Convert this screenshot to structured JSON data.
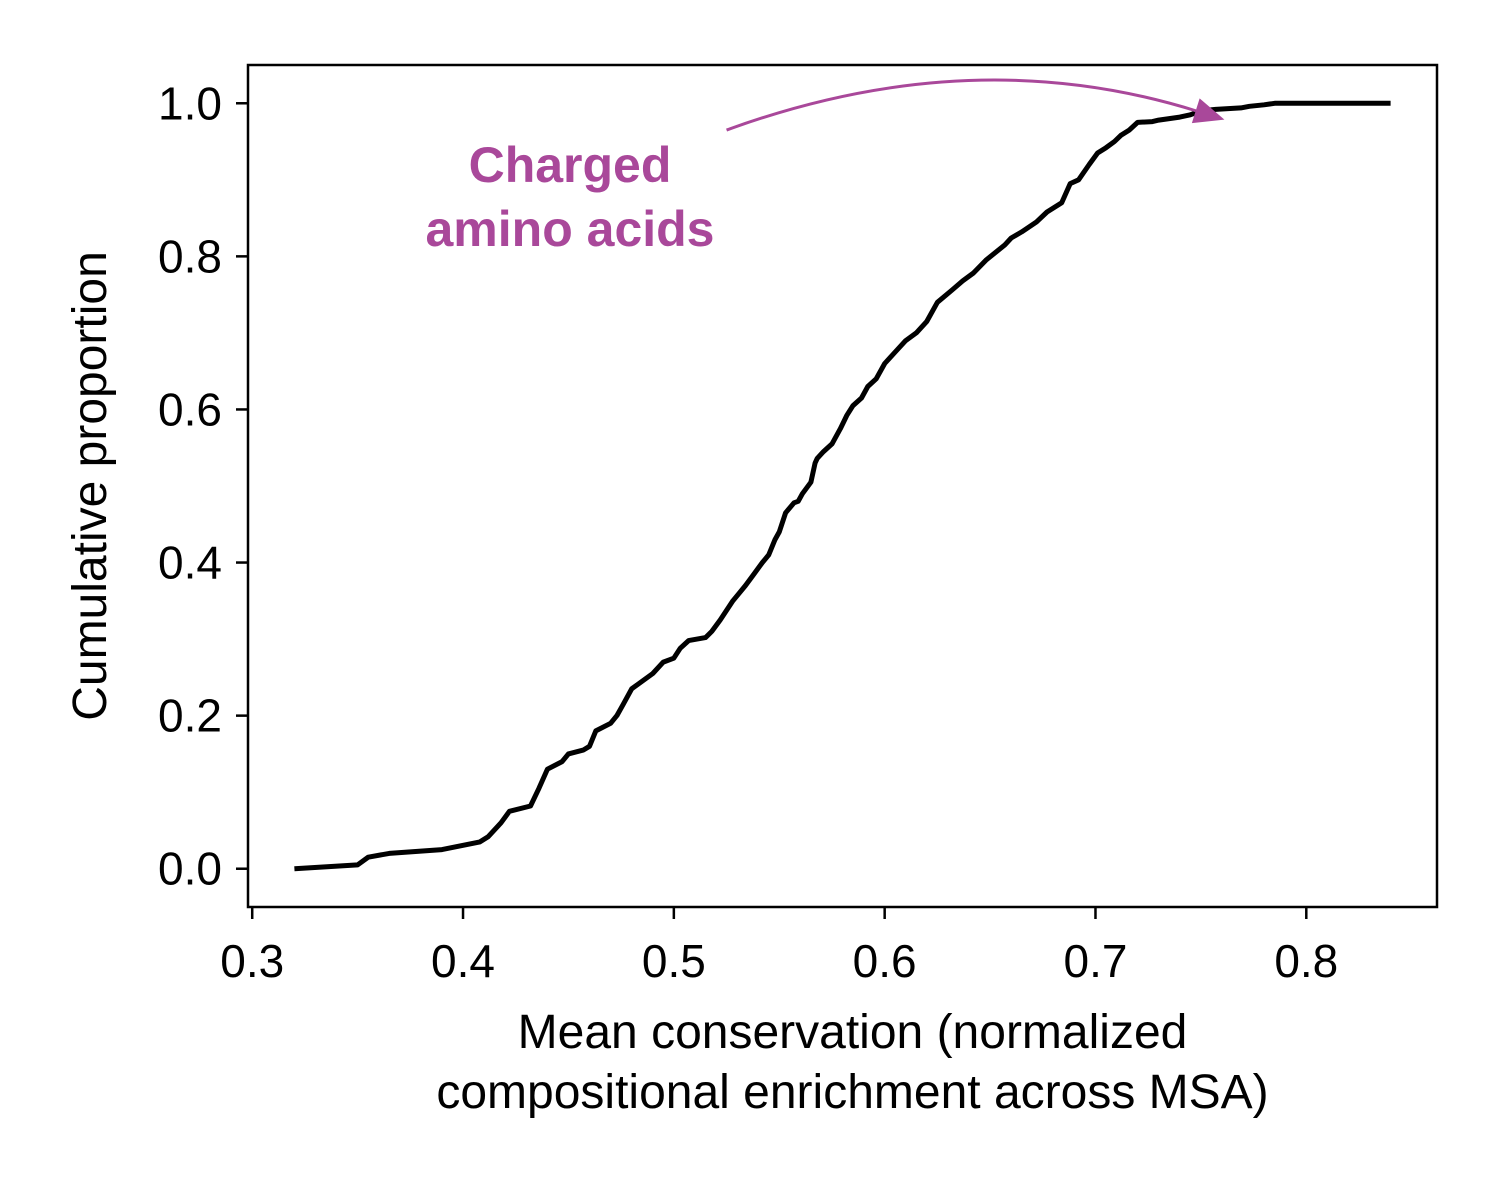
{
  "chart_data": {
    "type": "line",
    "xlabel": "Mean conservation (normalized\ncompositional enrichment across MSA)",
    "ylabel": "Cumulative proportion",
    "xlim": [
      0.298,
      0.862
    ],
    "ylim": [
      -0.05,
      1.05
    ],
    "xticks": [
      0.3,
      0.4,
      0.5,
      0.6,
      0.7,
      0.8
    ],
    "xtick_labels": [
      "0.3",
      "0.4",
      "0.5",
      "0.6",
      "0.7",
      "0.8"
    ],
    "yticks": [
      0.0,
      0.2,
      0.4,
      0.6,
      0.8,
      1.0
    ],
    "ytick_labels": [
      "0.0",
      "0.2",
      "0.4",
      "0.6",
      "0.8",
      "1.0"
    ],
    "grid": false,
    "line_color": "#000000",
    "series": [
      {
        "x": [
          0.32,
          0.35,
          0.355,
          0.365,
          0.39,
          0.408,
          0.412,
          0.418,
          0.422,
          0.432,
          0.436,
          0.44,
          0.447,
          0.45,
          0.457,
          0.46,
          0.463,
          0.47,
          0.473,
          0.476,
          0.48,
          0.49,
          0.495,
          0.5,
          0.503,
          0.507,
          0.515,
          0.518,
          0.522,
          0.528,
          0.531,
          0.534,
          0.538,
          0.542,
          0.545,
          0.548,
          0.55,
          0.553,
          0.557,
          0.559,
          0.561,
          0.565,
          0.567,
          0.568,
          0.571,
          0.575,
          0.579,
          0.582,
          0.585,
          0.589,
          0.592,
          0.596,
          0.6,
          0.605,
          0.61,
          0.615,
          0.62,
          0.625,
          0.632,
          0.637,
          0.642,
          0.648,
          0.657,
          0.66,
          0.665,
          0.672,
          0.677,
          0.684,
          0.688,
          0.692,
          0.697,
          0.701,
          0.705,
          0.709,
          0.712,
          0.716,
          0.72,
          0.727,
          0.73,
          0.735,
          0.74,
          0.745,
          0.75,
          0.757,
          0.769,
          0.773,
          0.78,
          0.785,
          0.81,
          0.84
        ],
        "y": [
          0.0,
          0.005,
          0.015,
          0.02,
          0.025,
          0.035,
          0.042,
          0.06,
          0.075,
          0.082,
          0.105,
          0.13,
          0.14,
          0.15,
          0.155,
          0.16,
          0.18,
          0.19,
          0.2,
          0.215,
          0.235,
          0.255,
          0.27,
          0.275,
          0.288,
          0.298,
          0.302,
          0.31,
          0.325,
          0.35,
          0.36,
          0.37,
          0.385,
          0.4,
          0.41,
          0.43,
          0.44,
          0.465,
          0.478,
          0.48,
          0.49,
          0.505,
          0.53,
          0.536,
          0.545,
          0.555,
          0.575,
          0.592,
          0.605,
          0.615,
          0.63,
          0.64,
          0.66,
          0.675,
          0.69,
          0.7,
          0.715,
          0.74,
          0.756,
          0.768,
          0.778,
          0.795,
          0.815,
          0.824,
          0.832,
          0.845,
          0.858,
          0.87,
          0.895,
          0.9,
          0.92,
          0.935,
          0.942,
          0.95,
          0.958,
          0.965,
          0.975,
          0.976,
          0.978,
          0.98,
          0.982,
          0.985,
          0.99,
          0.992,
          0.994,
          0.996,
          0.998,
          1.0,
          1.0,
          1.0
        ]
      }
    ],
    "annotation": {
      "text_lines": [
        "Charged",
        "amino acids"
      ],
      "color": "#a9489a",
      "arrow_from": [
        0.525,
        0.965
      ],
      "arrow_to": [
        0.758,
        0.985
      ]
    }
  }
}
